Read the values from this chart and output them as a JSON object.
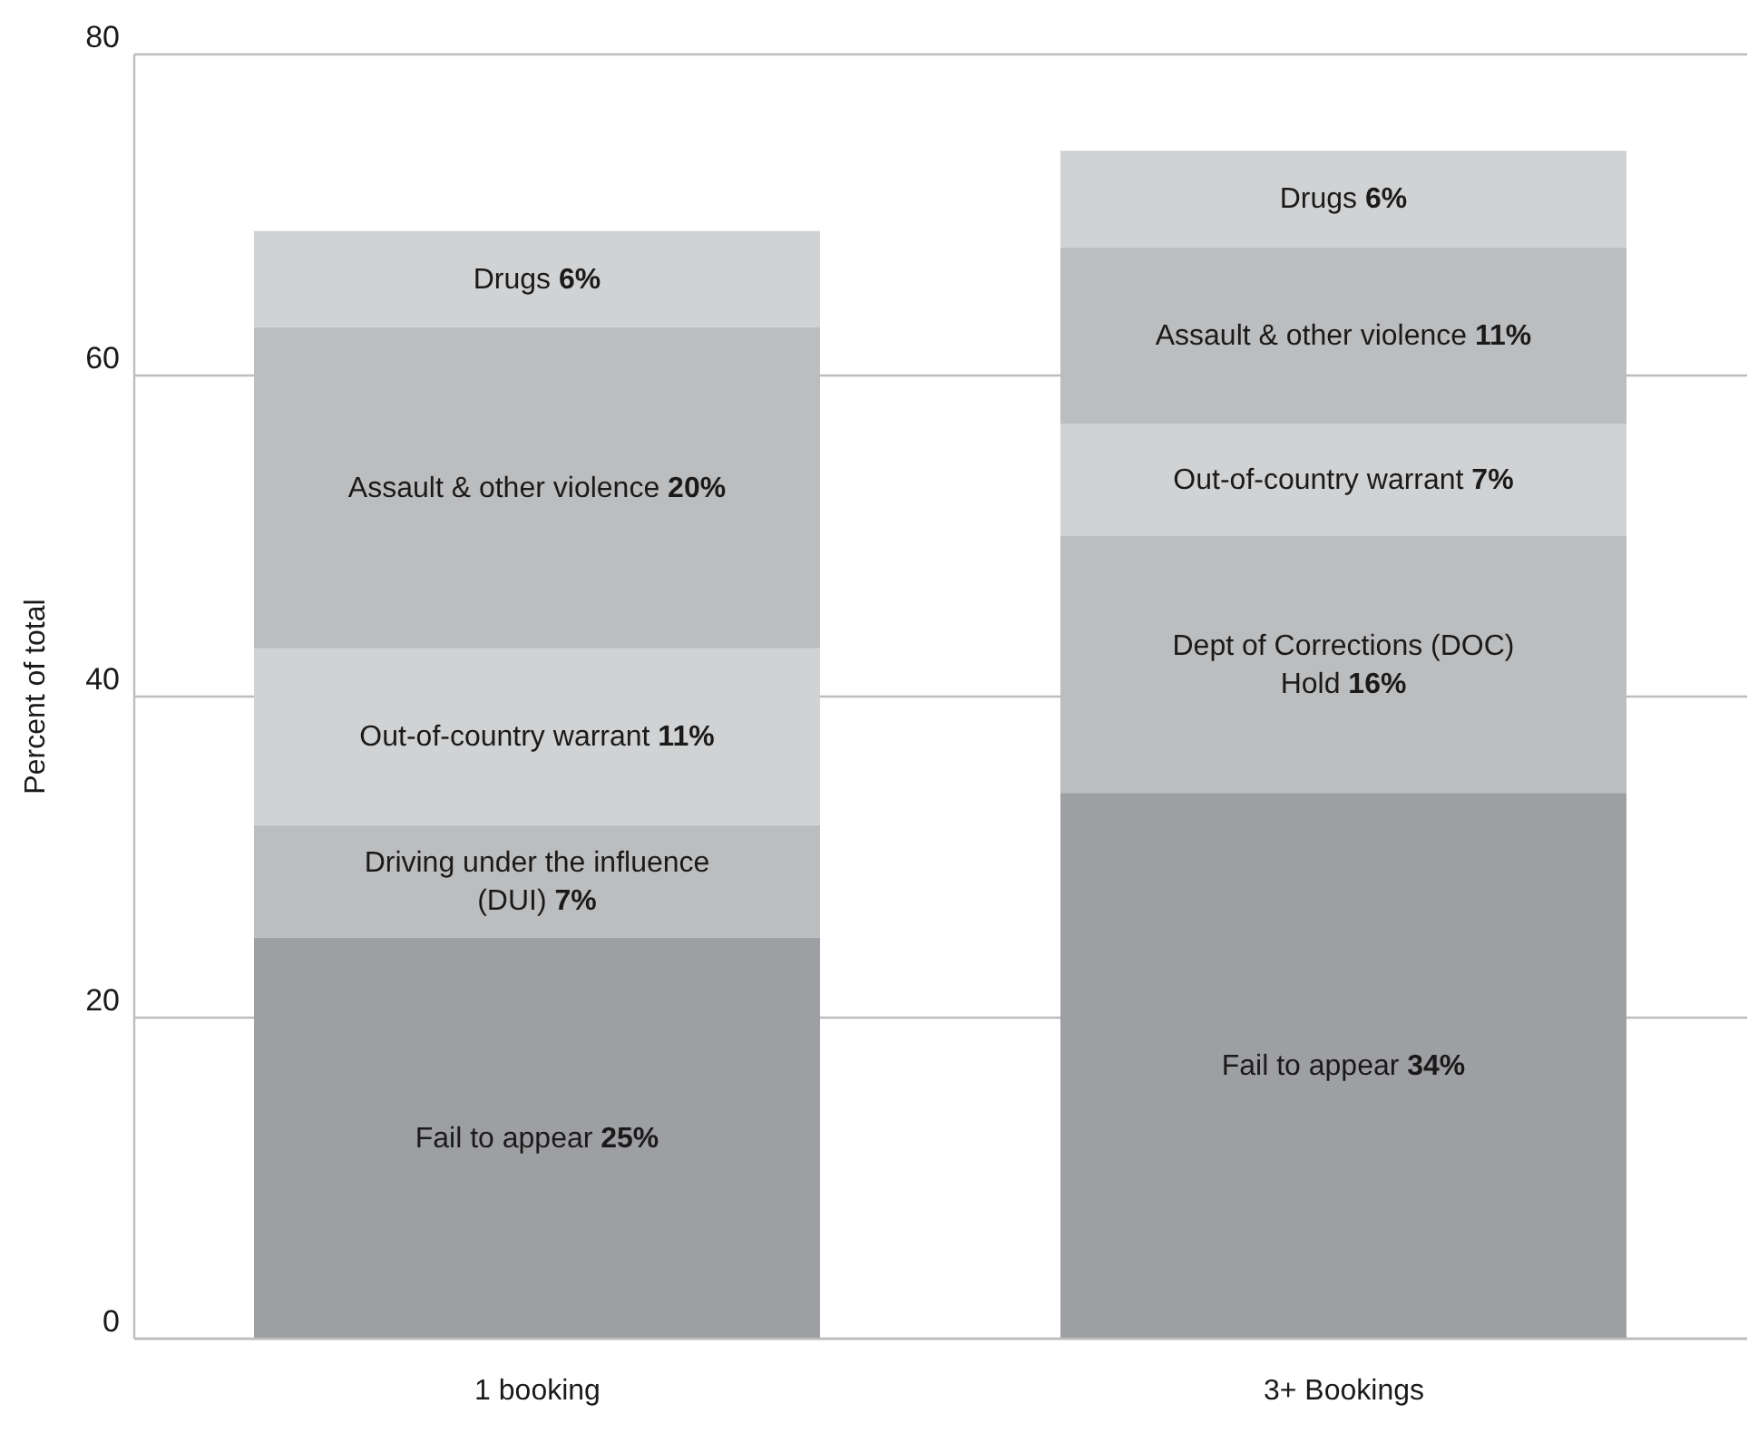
{
  "chart_data": {
    "type": "bar",
    "stacked": true,
    "ylabel": "Percent of total",
    "categories": [
      "1 booking",
      "3+ Bookings"
    ],
    "series": [
      {
        "name": "Fail to appear",
        "color": "#9e9fa2",
        "values": [
          25,
          34
        ],
        "value_labels": [
          "25%",
          "34%"
        ]
      },
      {
        "name": "Driving under the influence (DUI)",
        "color": "#bcbdbf",
        "values": [
          7,
          null
        ],
        "value_labels": [
          "7%",
          null
        ]
      },
      {
        "name": "Dept of Corrections (DOC) Hold",
        "color": "#bcbdbf",
        "values": [
          null,
          16
        ],
        "value_labels": [
          null,
          "16%"
        ]
      },
      {
        "name": "Out-of-country warrant",
        "color": "#d1d2d4",
        "values": [
          11,
          7
        ],
        "value_labels": [
          "11%",
          "7%"
        ]
      },
      {
        "name": "Assault & other violence",
        "color": "#bcbdbf",
        "values": [
          20,
          11
        ],
        "value_labels": [
          "20%",
          "11%"
        ]
      },
      {
        "name": "Drugs",
        "color": "#d1d2d4",
        "values": [
          6,
          6
        ],
        "value_labels": [
          "6%",
          "6%"
        ]
      }
    ],
    "ylim": [
      0,
      80
    ],
    "yticks": [
      0,
      20,
      40,
      60,
      80
    ],
    "grid": "y",
    "legend": false
  }
}
